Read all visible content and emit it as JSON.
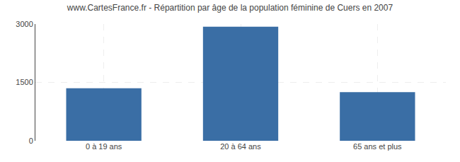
{
  "chart_data": {
    "type": "bar",
    "title": "www.CartesFrance.fr - Répartition par âge de la population féminine de Cuers en 2007",
    "categories": [
      "0 à 19 ans",
      "20 à 64 ans",
      "65 ans et plus"
    ],
    "values": [
      1350,
      2930,
      1250
    ],
    "color": "#3a6ea5",
    "ylim": [
      0,
      3000
    ],
    "yticks": [
      0,
      1500,
      3000
    ],
    "grid": true
  }
}
